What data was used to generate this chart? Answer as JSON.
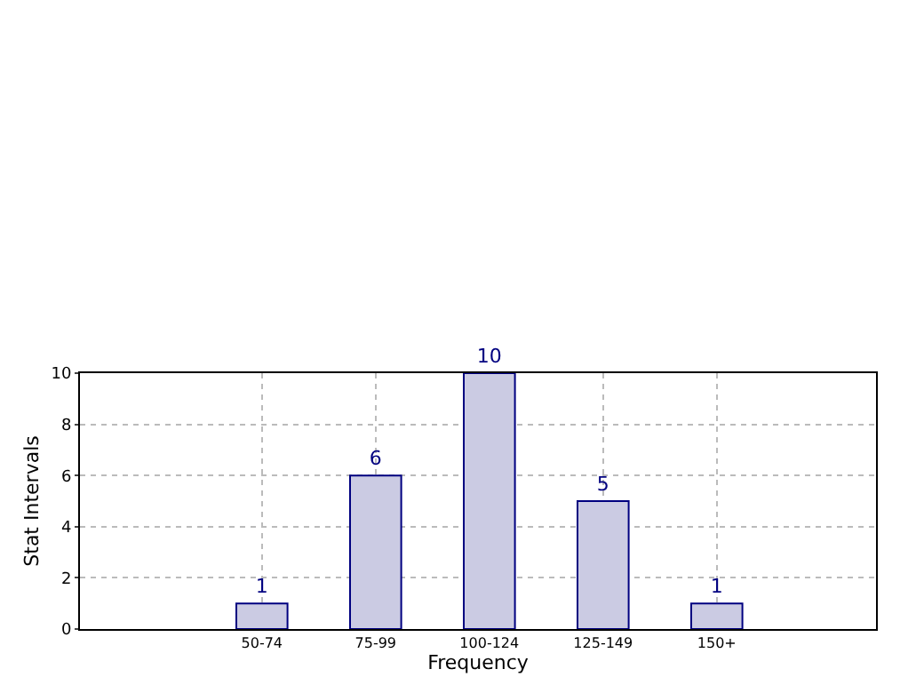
{
  "chart_data": {
    "type": "bar",
    "categories": [
      "50-74",
      "75-99",
      "100-124",
      "125-149",
      "150+"
    ],
    "values": [
      1,
      6,
      10,
      5,
      1
    ],
    "data_labels": true,
    "color": "#cbcbe3",
    "xlabel": "Frequency",
    "ylabel": "Stat Intervals",
    "ylim": [
      0,
      10
    ],
    "yticks": [
      0,
      2,
      4,
      6,
      8,
      10
    ],
    "grid": true,
    "line_style": "dotted"
  }
}
